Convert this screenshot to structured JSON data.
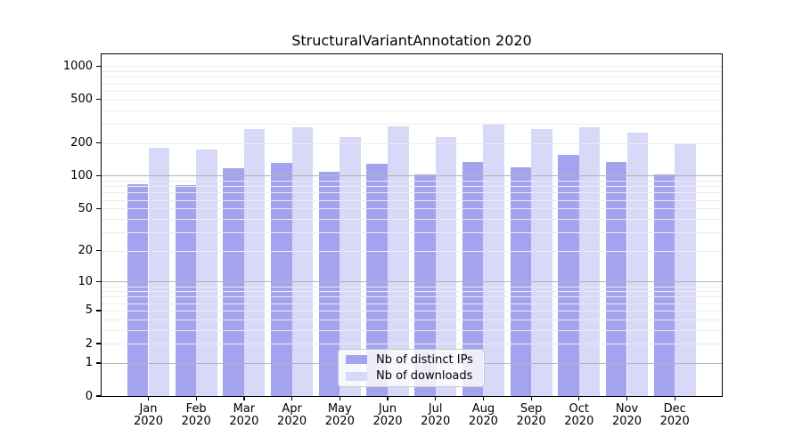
{
  "title": "StructuralVariantAnnotation 2020",
  "chart_data": {
    "type": "bar",
    "title": "StructuralVariantAnnotation 2020",
    "categories": [
      "Jan 2020",
      "Feb 2020",
      "Mar 2020",
      "Apr 2020",
      "May 2020",
      "Jun 2020",
      "Jul 2020",
      "Aug 2020",
      "Sep 2020",
      "Oct 2020",
      "Nov 2020",
      "Dec 2020"
    ],
    "series": [
      {
        "name": "Nb of distinct IPs",
        "color": "#a3a3f0",
        "values": [
          84,
          82,
          118,
          132,
          108,
          128,
          102,
          135,
          119,
          155,
          135,
          103
        ]
      },
      {
        "name": "Nb of downloads",
        "color": "#d8d8f8",
        "values": [
          181,
          174,
          268,
          279,
          225,
          285,
          225,
          301,
          268,
          276,
          247,
          196
        ]
      }
    ],
    "xlabel": "",
    "ylabel": "",
    "y_ticks": [
      0,
      1,
      2,
      5,
      10,
      20,
      50,
      100,
      200,
      500,
      1000
    ],
    "y_scale": "log10(value+1)",
    "ylim": [
      0,
      1300
    ],
    "grid": "both",
    "legend_position": "lower center"
  },
  "colors": {
    "background": "#ffffff",
    "axis": "#000000",
    "grid_major": "#b4b4b4",
    "grid_minor": "#ececec",
    "legend_border": "#cccccc"
  }
}
